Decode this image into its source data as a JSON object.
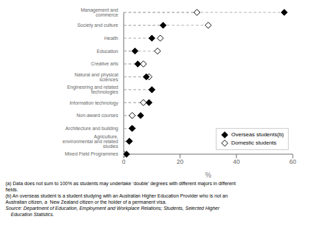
{
  "chart_data": {
    "type": "dot",
    "categories": [
      "Management and commerce",
      "Society and culture",
      "Health",
      "Education",
      "Creative arts",
      "Natural and physical sciences",
      "Engineering and related technologies",
      "Information technology",
      "Non-award courses",
      "Architecture and building",
      "Agriculture, environmental and related studies",
      "Mixed Field Programmes"
    ],
    "series": [
      {
        "name": "Overseas students(b)",
        "color": "#000000",
        "marker": "diamond",
        "values": [
          57,
          14,
          10,
          4,
          5,
          8,
          10,
          9,
          6,
          3,
          2,
          1
        ]
      },
      {
        "name": "Domestic students",
        "color": "#ffffff",
        "marker": "diamond",
        "values": [
          26,
          30,
          13,
          12,
          7,
          9,
          10,
          7,
          3,
          3,
          2,
          0
        ]
      }
    ],
    "xlabel": "%",
    "xlim": [
      0,
      60
    ],
    "xticks": [
      0,
      20,
      40,
      60
    ],
    "grid": false,
    "legend": "lower right",
    "color": "#b0b0b0",
    "line_style": "dashed",
    "annotations": [
      "(a) Data does not sum to 100% as students may undertake ‘double’ degrees with different majors in different",
      "fields.",
      "(b) An overseas student is a student studying with an Australian Higher Education Provider who is not an",
      "Australian citizen, a  New Zealand citizen or the holder of a permanent visa.",
      "Source: Department of Education, Employment and Workplace Relations; Students, Selected Higher",
      "    Education Statistics."
    ]
  }
}
